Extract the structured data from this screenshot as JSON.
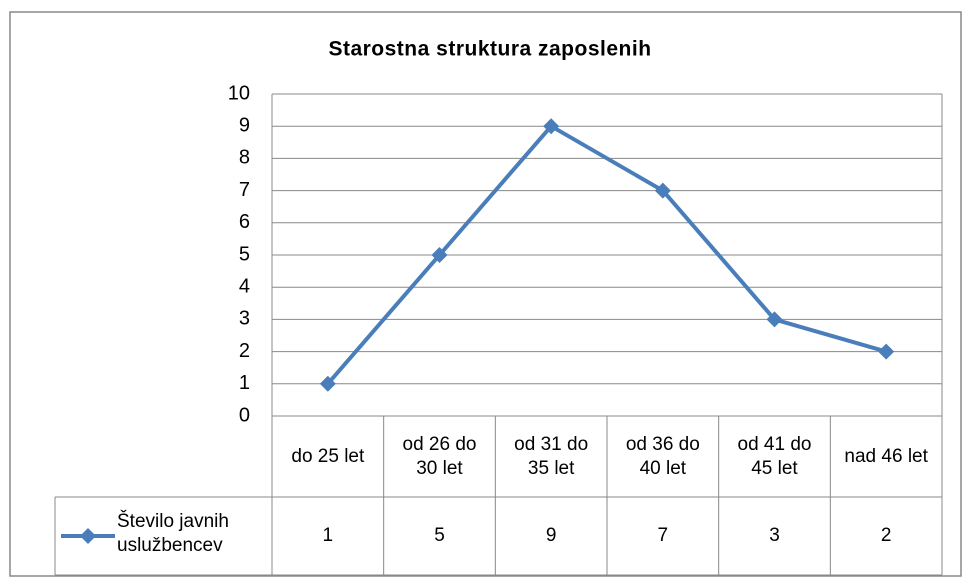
{
  "chart_data": {
    "type": "line",
    "title": "Starostna struktura zaposlenih",
    "categories": [
      "do 25 let",
      "od 26 do 30 let",
      "od 31 do 35 let",
      "od 36 do 40 let",
      "od 41 do 45 let",
      "nad 46 let"
    ],
    "series": [
      {
        "name": "Število javnih uslužbencev",
        "color": "#4a7ebb",
        "values": [
          1,
          5,
          9,
          7,
          3,
          2
        ]
      }
    ],
    "ylim": [
      0,
      10
    ],
    "yticks": [
      0,
      1,
      2,
      3,
      4,
      5,
      6,
      7,
      8,
      9,
      10
    ],
    "grid": true
  }
}
